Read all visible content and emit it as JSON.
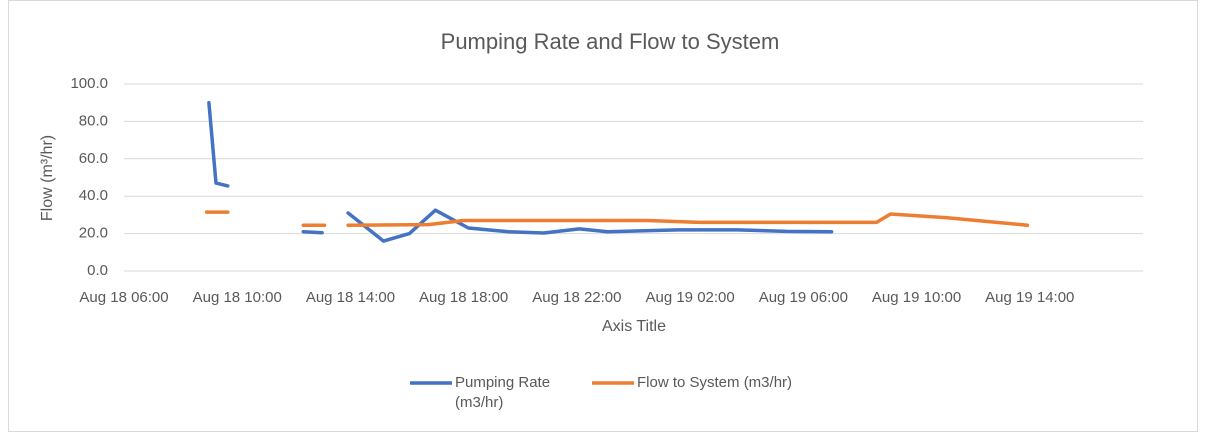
{
  "chart_data": {
    "type": "line",
    "title": "Pumping Rate and Flow to System",
    "x_label": "Axis Title",
    "y_label": "Flow (m³/hr)",
    "xlim": [
      "Aug 18 06:00",
      "Aug 19 18:00"
    ],
    "xticks": [
      "Aug 18 06:00",
      "Aug 18 10:00",
      "Aug 18 14:00",
      "Aug 18 18:00",
      "Aug 18 22:00",
      "Aug 19 02:00",
      "Aug 19 06:00",
      "Aug 19 10:00",
      "Aug 19 14:00"
    ],
    "ylim": [
      0,
      100
    ],
    "yticks": [
      {
        "value": 0,
        "label": "0.0"
      },
      {
        "value": 20,
        "label": "20.0"
      },
      {
        "value": 40,
        "label": "40.0"
      },
      {
        "value": 60,
        "label": "60.0"
      },
      {
        "value": 80,
        "label": "80.0"
      },
      {
        "value": 100,
        "label": "100.0"
      }
    ],
    "grid": true,
    "legend": "bottom",
    "series": [
      {
        "name": "Pumping Rate (m3/hr)",
        "color": "#4472c4",
        "x": [
          "Aug 18 09:00",
          "Aug 18 09:15",
          "Aug 18 09:40",
          null,
          "Aug 18 12:20",
          "Aug 18 13:00",
          null,
          "Aug 18 13:55",
          "Aug 18 15:10",
          "Aug 18 16:05",
          "Aug 18 17:00",
          "Aug 18 18:10",
          "Aug 18 19:35",
          "Aug 18 20:50",
          "Aug 18 22:05",
          "Aug 18 23:05",
          "Aug 19 01:35",
          "Aug 19 03:40",
          "Aug 19 05:25",
          "Aug 19 07:00"
        ],
        "values": [
          90,
          47,
          45.5,
          null,
          21,
          20.5,
          null,
          31,
          16,
          20,
          32.5,
          23,
          21,
          20.3,
          22.5,
          21,
          22,
          22,
          21.2,
          21
        ]
      },
      {
        "name": "Flow to System (m3/hr)",
        "color": "#ed7d31",
        "x": [
          "Aug 18 08:55",
          "Aug 18 09:40",
          null,
          "Aug 18 12:20",
          "Aug 18 13:05",
          null,
          "Aug 18 13:55",
          "Aug 18 16:45",
          "Aug 18 18:00",
          "Aug 18 21:20",
          "Aug 19 00:30",
          "Aug 19 02:20",
          "Aug 19 08:15",
          "Aug 19 08:35",
          "Aug 19 09:05",
          "Aug 19 11:05",
          "Aug 19 13:55"
        ],
        "values": [
          31.5,
          31.5,
          null,
          24.5,
          24.5,
          null,
          24.5,
          24.8,
          27,
          27,
          27,
          26,
          26,
          26,
          30.5,
          28.5,
          24.5
        ]
      }
    ]
  }
}
